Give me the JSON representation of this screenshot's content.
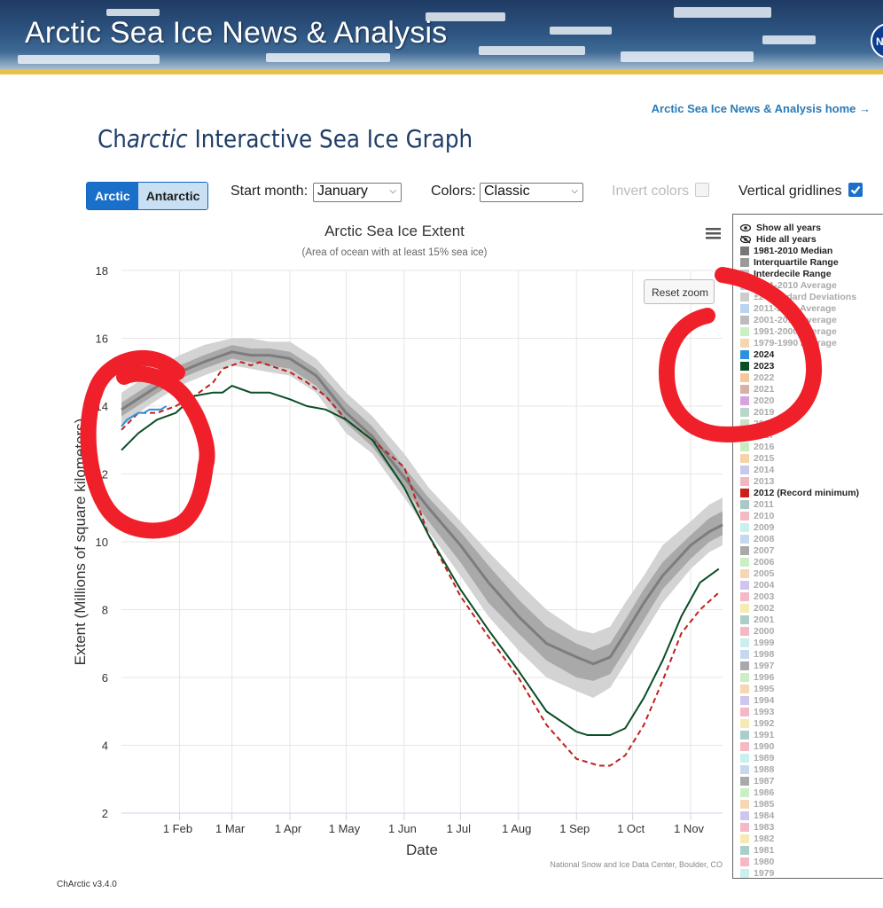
{
  "banner": {
    "title": "Arctic Sea Ice News & Analysis",
    "logo_text": "NASA"
  },
  "header": {
    "home_link": "Arctic Sea Ice News & Analysis home →"
  },
  "page_title": {
    "prefix": "Ch",
    "italic": "arctic",
    "rest": " Interactive Sea Ice Graph"
  },
  "controls": {
    "hemisphere": {
      "options": [
        "Arctic",
        "Antarctic"
      ],
      "selected": "Arctic"
    },
    "start_month_label": "Start month:",
    "start_month_value": "January",
    "colors_label": "Colors:",
    "colors_value": "Classic",
    "invert_label": "Invert colors",
    "invert_checked": false,
    "gridlines_label": "Vertical gridlines",
    "gridlines_checked": true
  },
  "reset_zoom": "Reset zoom",
  "version": "ChArctic v3.4.0",
  "chart_data": {
    "type": "line",
    "title": "Arctic Sea Ice Extent",
    "subtitle": "(Area of ocean with at least 15% sea ice)",
    "xlabel": "Date",
    "ylabel": "Extent (Millions of square kilometers)",
    "credit": "National Snow and Ice Data Center, Boulder, CO",
    "x_unit": "day of year",
    "xlim": [
      1,
      322
    ],
    "ylim": [
      2,
      18
    ],
    "yticks": [
      2,
      4,
      6,
      8,
      10,
      12,
      14,
      16,
      18
    ],
    "xticks": [
      {
        "label": "1 Feb",
        "day": 32
      },
      {
        "label": "1 Mar",
        "day": 60
      },
      {
        "label": "1 Apr",
        "day": 91
      },
      {
        "label": "1 May",
        "day": 121
      },
      {
        "label": "1 Jun",
        "day": 152
      },
      {
        "label": "1 Jul",
        "day": 182
      },
      {
        "label": "1 Aug",
        "day": 213
      },
      {
        "label": "1 Sep",
        "day": 244
      },
      {
        "label": "1 Oct",
        "day": 274
      },
      {
        "label": "1 Nov",
        "day": 305
      }
    ],
    "grid": "vertical",
    "legend_position": "right",
    "band_days": [
      1,
      15,
      32,
      45,
      60,
      70,
      80,
      91,
      105,
      121,
      135,
      152,
      165,
      182,
      197,
      213,
      228,
      244,
      253,
      262,
      270,
      280,
      290,
      305,
      315,
      322
    ],
    "median": [
      13.9,
      14.4,
      15.0,
      15.3,
      15.6,
      15.5,
      15.5,
      15.4,
      14.9,
      13.8,
      13.1,
      11.9,
      11.0,
      9.9,
      8.8,
      7.8,
      7.0,
      6.6,
      6.4,
      6.6,
      7.3,
      8.2,
      9.0,
      9.9,
      10.3,
      10.5
    ],
    "interquartile": {
      "lower": [
        13.7,
        14.2,
        14.8,
        15.1,
        15.4,
        15.3,
        15.2,
        15.1,
        14.6,
        13.5,
        12.8,
        11.6,
        10.6,
        9.4,
        8.2,
        7.3,
        6.5,
        6.0,
        5.9,
        6.1,
        6.8,
        7.7,
        8.6,
        9.5,
        10.0,
        10.2
      ],
      "upper": [
        14.1,
        14.6,
        15.2,
        15.5,
        15.8,
        15.7,
        15.7,
        15.6,
        15.1,
        14.1,
        13.4,
        12.2,
        11.3,
        10.3,
        9.3,
        8.3,
        7.5,
        7.0,
        6.8,
        7.0,
        7.7,
        8.6,
        9.4,
        10.2,
        10.7,
        10.9
      ]
    },
    "interdecile": {
      "lower": [
        13.4,
        14.0,
        14.6,
        14.9,
        15.2,
        15.1,
        15.0,
        14.9,
        14.4,
        13.2,
        12.6,
        11.3,
        10.3,
        9.0,
        7.8,
        6.8,
        6.0,
        5.6,
        5.4,
        5.7,
        6.4,
        7.3,
        8.2,
        9.2,
        9.7,
        9.9
      ],
      "upper": [
        14.4,
        14.9,
        15.5,
        15.8,
        16.0,
        16.0,
        15.9,
        15.9,
        15.4,
        14.4,
        13.7,
        12.6,
        11.6,
        10.6,
        9.7,
        8.8,
        8.0,
        7.4,
        7.3,
        7.5,
        8.2,
        9.0,
        9.9,
        10.6,
        11.1,
        11.3
      ]
    },
    "series": [
      {
        "name": "2024",
        "color": "#2f8fe0",
        "dash": false,
        "x": [
          1,
          4,
          7,
          10,
          13,
          16,
          19,
          22,
          25
        ],
        "y": [
          13.4,
          13.6,
          13.7,
          13.8,
          13.8,
          13.9,
          13.9,
          13.9,
          14.0
        ]
      },
      {
        "name": "2023",
        "color": "#0b4d26",
        "dash": false,
        "x": [
          1,
          10,
          20,
          30,
          40,
          50,
          55,
          60,
          65,
          70,
          75,
          80,
          91,
          100,
          110,
          121,
          135,
          152,
          165,
          182,
          197,
          213,
          228,
          244,
          250,
          256,
          262,
          270,
          280,
          290,
          300,
          310,
          320
        ],
        "y": [
          12.7,
          13.2,
          13.6,
          13.8,
          14.3,
          14.4,
          14.4,
          14.6,
          14.5,
          14.4,
          14.4,
          14.4,
          14.2,
          14.0,
          13.9,
          13.6,
          13.0,
          11.6,
          10.2,
          8.6,
          7.4,
          6.2,
          5.0,
          4.4,
          4.3,
          4.3,
          4.3,
          4.5,
          5.4,
          6.5,
          7.8,
          8.8,
          9.2
        ]
      },
      {
        "name": "2012 (Record minimum)",
        "color": "#c0201e",
        "dash": true,
        "x": [
          1,
          10,
          20,
          30,
          40,
          50,
          55,
          60,
          65,
          70,
          75,
          80,
          91,
          100,
          110,
          121,
          135,
          152,
          165,
          182,
          197,
          213,
          228,
          244,
          250,
          256,
          262,
          270,
          280,
          290,
          300,
          310,
          320
        ],
        "y": [
          13.3,
          13.8,
          13.8,
          14.0,
          14.3,
          14.7,
          15.1,
          15.2,
          15.3,
          15.2,
          15.3,
          15.2,
          15.0,
          14.7,
          14.3,
          13.6,
          13.0,
          12.2,
          10.2,
          8.4,
          7.2,
          6.0,
          4.6,
          3.6,
          3.5,
          3.4,
          3.4,
          3.7,
          4.6,
          5.9,
          7.3,
          8.0,
          8.5
        ]
      }
    ]
  },
  "legend": {
    "controls": [
      "Show all years",
      "Hide all years"
    ],
    "items": [
      {
        "label": "1981-2010 Median",
        "color": "#777777",
        "active": true
      },
      {
        "label": "Interquartile Range",
        "color": "#9a9a9a",
        "active": true
      },
      {
        "label": "Interdecile Range",
        "color": "#c6c6c6",
        "active": true
      },
      {
        "label": "1981-2010 Average",
        "color": "#b9c9d8",
        "active": false
      },
      {
        "label": "±2 Standard Deviations",
        "color": "#cccccc",
        "active": false
      },
      {
        "label": "2011-2020 Average",
        "color": "#b8d4f0",
        "active": false
      },
      {
        "label": "2001-2010 Average",
        "color": "#bcbcbc",
        "active": false
      },
      {
        "label": "1991-2000 Average",
        "color": "#c9efc3",
        "active": false
      },
      {
        "label": "1979-1990 Average",
        "color": "#f6d6b3",
        "active": false
      },
      {
        "label": "2024",
        "color": "#2f8fe0",
        "active": true
      },
      {
        "label": "2023",
        "color": "#0b4d26",
        "active": true
      },
      {
        "label": "2022",
        "color": "#f5c89a",
        "active": false
      },
      {
        "label": "2021",
        "color": "#d9b0a8",
        "active": false
      },
      {
        "label": "2020",
        "color": "#d8a2de",
        "active": false
      },
      {
        "label": "2019",
        "color": "#b9d7c8",
        "active": false
      },
      {
        "label": "2018",
        "color": "#cfe0c9",
        "active": false
      },
      {
        "label": "2017",
        "color": "#bfe7bb",
        "active": false
      },
      {
        "label": "2016",
        "color": "#c8ecbf",
        "active": false
      },
      {
        "label": "2015",
        "color": "#f6d2a9",
        "active": false
      },
      {
        "label": "2014",
        "color": "#c7c9ec",
        "active": false
      },
      {
        "label": "2013",
        "color": "#f4b7c1",
        "active": false
      },
      {
        "label": "2012 (Record minimum)",
        "color": "#d01c1c",
        "active": true
      },
      {
        "label": "2011",
        "color": "#a9c9c4",
        "active": false
      },
      {
        "label": "2010",
        "color": "#f6b9c3",
        "active": false
      },
      {
        "label": "2009",
        "color": "#c9f0ee",
        "active": false
      },
      {
        "label": "2008",
        "color": "#c5d8ef",
        "active": false
      },
      {
        "label": "2007",
        "color": "#a9a9a9",
        "active": false
      },
      {
        "label": "2006",
        "color": "#c9efc3",
        "active": false
      },
      {
        "label": "2005",
        "color": "#f6d6b3",
        "active": false
      },
      {
        "label": "2004",
        "color": "#cfc6ef",
        "active": false
      },
      {
        "label": "2003",
        "color": "#f4b8c6",
        "active": false
      },
      {
        "label": "2002",
        "color": "#f4eab3",
        "active": false
      },
      {
        "label": "2001",
        "color": "#a9cfc8",
        "active": false
      },
      {
        "label": "2000",
        "color": "#f6b9c3",
        "active": false
      },
      {
        "label": "1999",
        "color": "#c9f0ee",
        "active": false
      },
      {
        "label": "1998",
        "color": "#c5d8ef",
        "active": false
      },
      {
        "label": "1997",
        "color": "#a9a9a9",
        "active": false
      },
      {
        "label": "1996",
        "color": "#c9efc3",
        "active": false
      },
      {
        "label": "1995",
        "color": "#f6d6b3",
        "active": false
      },
      {
        "label": "1994",
        "color": "#cfc6ef",
        "active": false
      },
      {
        "label": "1993",
        "color": "#f4b8c6",
        "active": false
      },
      {
        "label": "1992",
        "color": "#f4eab3",
        "active": false
      },
      {
        "label": "1991",
        "color": "#a9cfc8",
        "active": false
      },
      {
        "label": "1990",
        "color": "#f6b9c3",
        "active": false
      },
      {
        "label": "1989",
        "color": "#c9f0ee",
        "active": false
      },
      {
        "label": "1988",
        "color": "#c5d8ef",
        "active": false
      },
      {
        "label": "1987",
        "color": "#a9a9a9",
        "active": false
      },
      {
        "label": "1986",
        "color": "#c9efc3",
        "active": false
      },
      {
        "label": "1985",
        "color": "#f6d6b3",
        "active": false
      },
      {
        "label": "1984",
        "color": "#cfc6ef",
        "active": false
      },
      {
        "label": "1983",
        "color": "#f4b8c6",
        "active": false
      },
      {
        "label": "1982",
        "color": "#f4eab3",
        "active": false
      },
      {
        "label": "1981",
        "color": "#a9cfc8",
        "active": false
      },
      {
        "label": "1980",
        "color": "#f6b9c3",
        "active": false
      },
      {
        "label": "1979",
        "color": "#c9f0ee",
        "active": false
      }
    ]
  },
  "annotation_color": "#f0202a"
}
